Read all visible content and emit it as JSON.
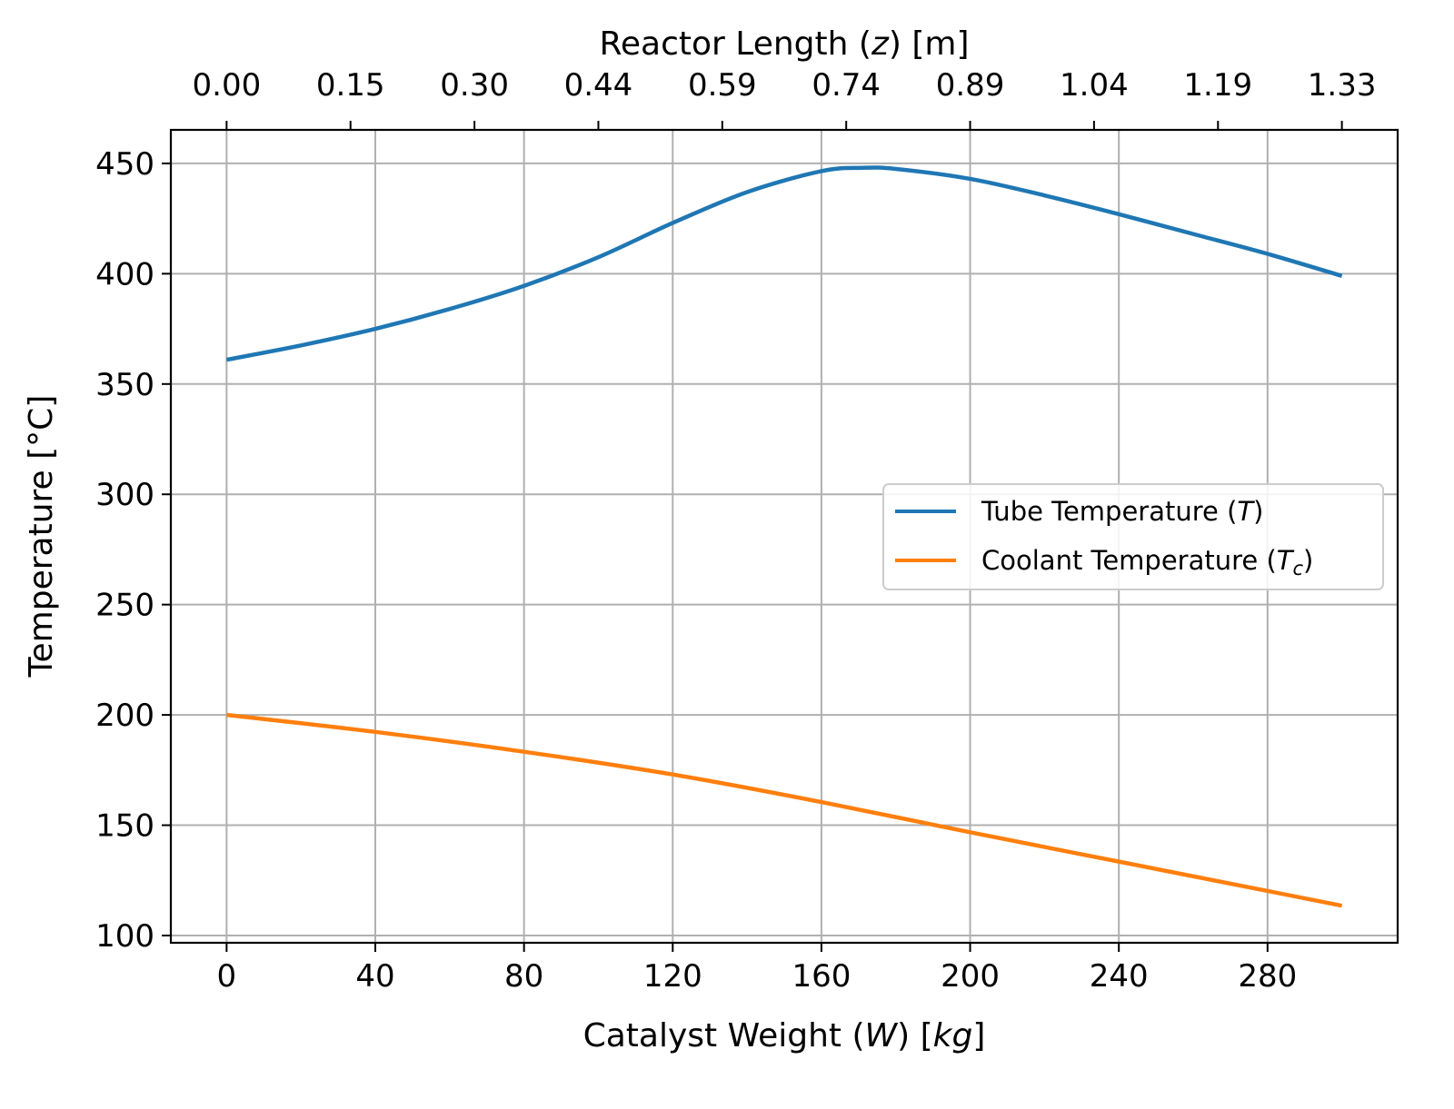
{
  "chart_data": {
    "type": "line",
    "title": "",
    "xlabel": "Catalyst Weight (W) [kg]",
    "xlabel_parts": {
      "pre": "Catalyst Weight (",
      "var": "W",
      "mid": ") [",
      "unit": "kg",
      "post": "]"
    },
    "ylabel": "Temperature [°C]",
    "top_xlabel": "Reactor Length (z) [m]",
    "top_xlabel_parts": {
      "pre": "Reactor Length (",
      "var": "z",
      "post": ") [m]"
    },
    "xlim": [
      -15,
      315
    ],
    "ylim": [
      96.7,
      465.2
    ],
    "x_ticks": [
      0,
      40,
      80,
      120,
      160,
      200,
      240,
      280
    ],
    "x_tick_labels": [
      "0",
      "40",
      "80",
      "120",
      "160",
      "200",
      "240",
      "280"
    ],
    "y_ticks": [
      100,
      150,
      200,
      250,
      300,
      350,
      400,
      450
    ],
    "y_tick_labels": [
      "100",
      "150",
      "200",
      "250",
      "300",
      "350",
      "400",
      "450"
    ],
    "top_x_ticks_at_W": [
      0,
      33.33,
      66.67,
      100,
      133.33,
      166.67,
      200,
      233.33,
      266.67,
      300
    ],
    "top_x_tick_labels": [
      "0.00",
      "0.15",
      "0.30",
      "0.44",
      "0.59",
      "0.74",
      "0.89",
      "1.04",
      "1.19",
      "1.33"
    ],
    "grid": true,
    "legend_position": "center-right",
    "series": [
      {
        "name": "Tube Temperature (T)",
        "legend": {
          "pre": "Tube Temperature (",
          "var": "T",
          "sub": "",
          "post": ")"
        },
        "color": "#1f77b4",
        "x": [
          0,
          20,
          40,
          60,
          80,
          100,
          120,
          140,
          160,
          171,
          180,
          200,
          220,
          240,
          260,
          280,
          300
        ],
        "y": [
          361,
          367.5,
          375,
          384,
          394.5,
          407.5,
          423,
          437,
          446.5,
          448,
          447.5,
          443,
          435.5,
          427,
          418,
          409,
          399
        ]
      },
      {
        "name": "Coolant Temperature (Tc)",
        "legend": {
          "pre": "Coolant Temperature (",
          "var": "T",
          "sub": "c",
          "post": ")"
        },
        "color": "#ff7f0e",
        "x": [
          0,
          40,
          80,
          120,
          160,
          200,
          240,
          280,
          300
        ],
        "y": [
          200,
          192.3,
          183.3,
          173,
          160.5,
          146.8,
          133.5,
          120.2,
          113.5
        ]
      }
    ]
  }
}
